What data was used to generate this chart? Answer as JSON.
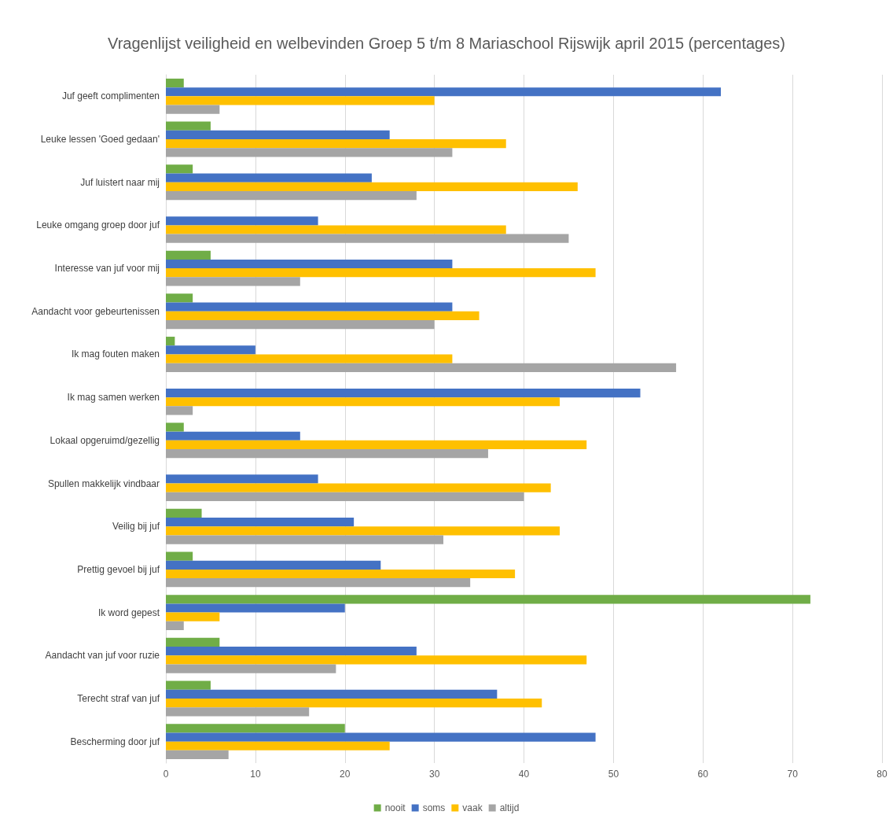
{
  "chart_data": {
    "type": "bar",
    "orientation": "horizontal",
    "title": "Vragenlijst veiligheid en welbevinden Groep 5 t/m 8 Mariaschool Rijswijk april 2015 (percentages)",
    "categories": [
      "Juf geeft complimenten",
      "Leuke lessen 'Goed gedaan'",
      "Juf luistert naar mij",
      "Leuke omgang groep door juf",
      "Interesse van juf voor mij",
      "Aandacht voor gebeurtenissen",
      "Ik mag fouten maken",
      "Ik mag samen werken",
      "Lokaal opgeruimd/gezellig",
      "Spullen makkelijk vindbaar",
      "Veilig bij juf",
      "Prettig gevoel bij juf",
      "Ik word gepest",
      "Aandacht van juf voor ruzie",
      "Terecht straf van juf",
      "Bescherming door juf"
    ],
    "series": [
      {
        "name": "nooit",
        "color": "#70ad47",
        "values": [
          2,
          5,
          3,
          0,
          5,
          3,
          1,
          0,
          2,
          0,
          4,
          3,
          72,
          6,
          5,
          20
        ]
      },
      {
        "name": "soms",
        "color": "#4472c4",
        "values": [
          62,
          25,
          23,
          17,
          32,
          32,
          10,
          53,
          15,
          17,
          21,
          24,
          20,
          28,
          37,
          48
        ]
      },
      {
        "name": "vaak",
        "color": "#ffc000",
        "values": [
          30,
          38,
          46,
          38,
          48,
          35,
          32,
          44,
          47,
          43,
          44,
          39,
          6,
          47,
          42,
          25
        ]
      },
      {
        "name": "altijd",
        "color": "#a5a5a5",
        "values": [
          6,
          32,
          28,
          45,
          15,
          30,
          57,
          3,
          36,
          40,
          31,
          34,
          2,
          19,
          16,
          7
        ]
      }
    ],
    "xlim": [
      0,
      80
    ],
    "xticks": [
      0,
      10,
      20,
      30,
      40,
      50,
      60,
      70,
      80
    ],
    "grid": "x",
    "legend": "bottom"
  }
}
